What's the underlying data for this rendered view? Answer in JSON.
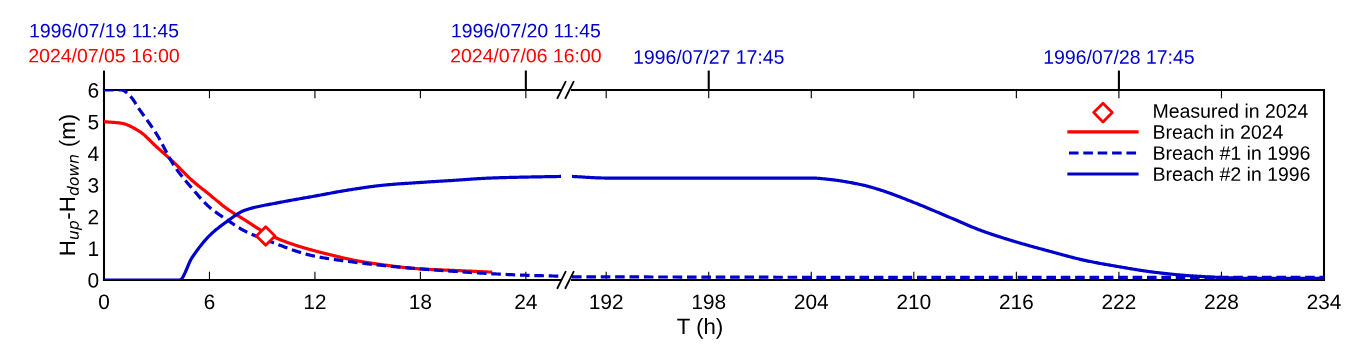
{
  "chart_data": [
    {
      "type": "line",
      "ylabel": "H$_{up}$-H$_{down}$ (m)",
      "xlim": [
        0,
        26
      ],
      "xticks": [
        0,
        6,
        12,
        18,
        24
      ],
      "ylim": [
        0,
        6
      ],
      "yticks": [
        0,
        1,
        2,
        3,
        4,
        5,
        6
      ],
      "x2lim": [
        "1996-07-19T11:45",
        "1996-07-20T13:45"
      ],
      "x2ticks": [
        {
          "value": "1996-07-19T11:45",
          "label": "1996/07/19 11:45"
        },
        {
          "value": "1996-07-20T11:45",
          "label": "1996/07/20 11:45"
        }
      ],
      "annotations": [
        "2024/07/05 16:00",
        "2024/07/06 16:00"
      ],
      "grid": false,
      "legend": false,
      "series": [
        {
          "type": "scatter",
          "marker": "diamond",
          "color": "#ff0000",
          "x": [
            9.2
          ],
          "values": [
            1.39
          ]
        },
        {
          "color": "#ff0000",
          "line_style": "solid",
          "x": [
            0,
            1,
            2,
            3,
            4,
            5,
            6,
            7,
            8,
            9,
            10,
            11,
            12,
            13,
            14,
            15,
            16,
            17,
            18,
            20,
            22
          ],
          "values": [
            5.0,
            4.95,
            4.7,
            4.2,
            3.7,
            3.15,
            2.7,
            2.25,
            1.9,
            1.55,
            1.28,
            1.08,
            0.92,
            0.78,
            0.65,
            0.55,
            0.47,
            0.4,
            0.35,
            0.3,
            0.25
          ]
        },
        {
          "color": "#0000cc",
          "line_style": "dashed",
          "x": [
            0,
            1,
            1.5,
            2,
            3,
            4,
            5,
            6,
            7,
            8,
            10,
            11,
            12,
            14,
            16,
            18,
            20,
            22,
            24,
            26
          ],
          "values": [
            6.0,
            6.0,
            5.8,
            5.4,
            4.6,
            3.6,
            2.9,
            2.3,
            1.9,
            1.55,
            1.1,
            0.9,
            0.75,
            0.58,
            0.45,
            0.35,
            0.27,
            0.2,
            0.15,
            0.12
          ]
        },
        {
          "color": "#0000cc",
          "line_style": "solid",
          "x": [
            0,
            4.3,
            5,
            6,
            7,
            8,
            10,
            12,
            14,
            16,
            18,
            20,
            22,
            24,
            26
          ],
          "values": [
            0,
            0,
            0.7,
            1.4,
            1.85,
            2.2,
            2.45,
            2.65,
            2.85,
            3.0,
            3.08,
            3.15,
            3.22,
            3.25,
            3.27
          ]
        }
      ]
    },
    {
      "type": "line",
      "xlabel": "T (h)",
      "xlim": [
        190,
        234
      ],
      "xticks": [
        192,
        198,
        204,
        210,
        216,
        222,
        228,
        234
      ],
      "ylim": [
        0,
        6
      ],
      "tick_labels": "x",
      "x2lim": [
        "1996-07-27T09:45",
        "1996-07-29T05:45"
      ],
      "x2ticks": [
        {
          "value": "1996-07-27T17:45",
          "label": "1996/07/27 17:45"
        },
        {
          "value": "1996-07-28T17:45",
          "label": "1996/07/28 17:45"
        }
      ],
      "grid": false,
      "legend": "top right",
      "series": [
        {
          "name": "Measured in 2024",
          "type": "scatter",
          "marker": "diamond",
          "color": "#ff0000"
        },
        {
          "name": "Breach in 2024",
          "color": "#ff0000",
          "line_style": "solid"
        },
        {
          "name": "Breach #1 in 1996",
          "color": "#0000cc",
          "line_style": "dashed",
          "x": [
            190,
            200,
            210,
            220,
            234
          ],
          "values": [
            0.1,
            0.09,
            0.08,
            0.08,
            0.08
          ]
        },
        {
          "name": "Breach #2 in 1996",
          "color": "#0000cc",
          "line_style": "solid",
          "x": [
            190,
            192,
            198,
            204,
            205,
            207,
            208,
            210,
            212,
            214,
            216,
            218,
            220,
            222,
            224,
            226,
            228,
            230,
            234
          ],
          "values": [
            3.27,
            3.22,
            3.22,
            3.22,
            3.18,
            3.0,
            2.85,
            2.45,
            2.0,
            1.55,
            1.2,
            0.9,
            0.62,
            0.42,
            0.25,
            0.14,
            0.08,
            0.05,
            0.05
          ]
        }
      ]
    }
  ]
}
